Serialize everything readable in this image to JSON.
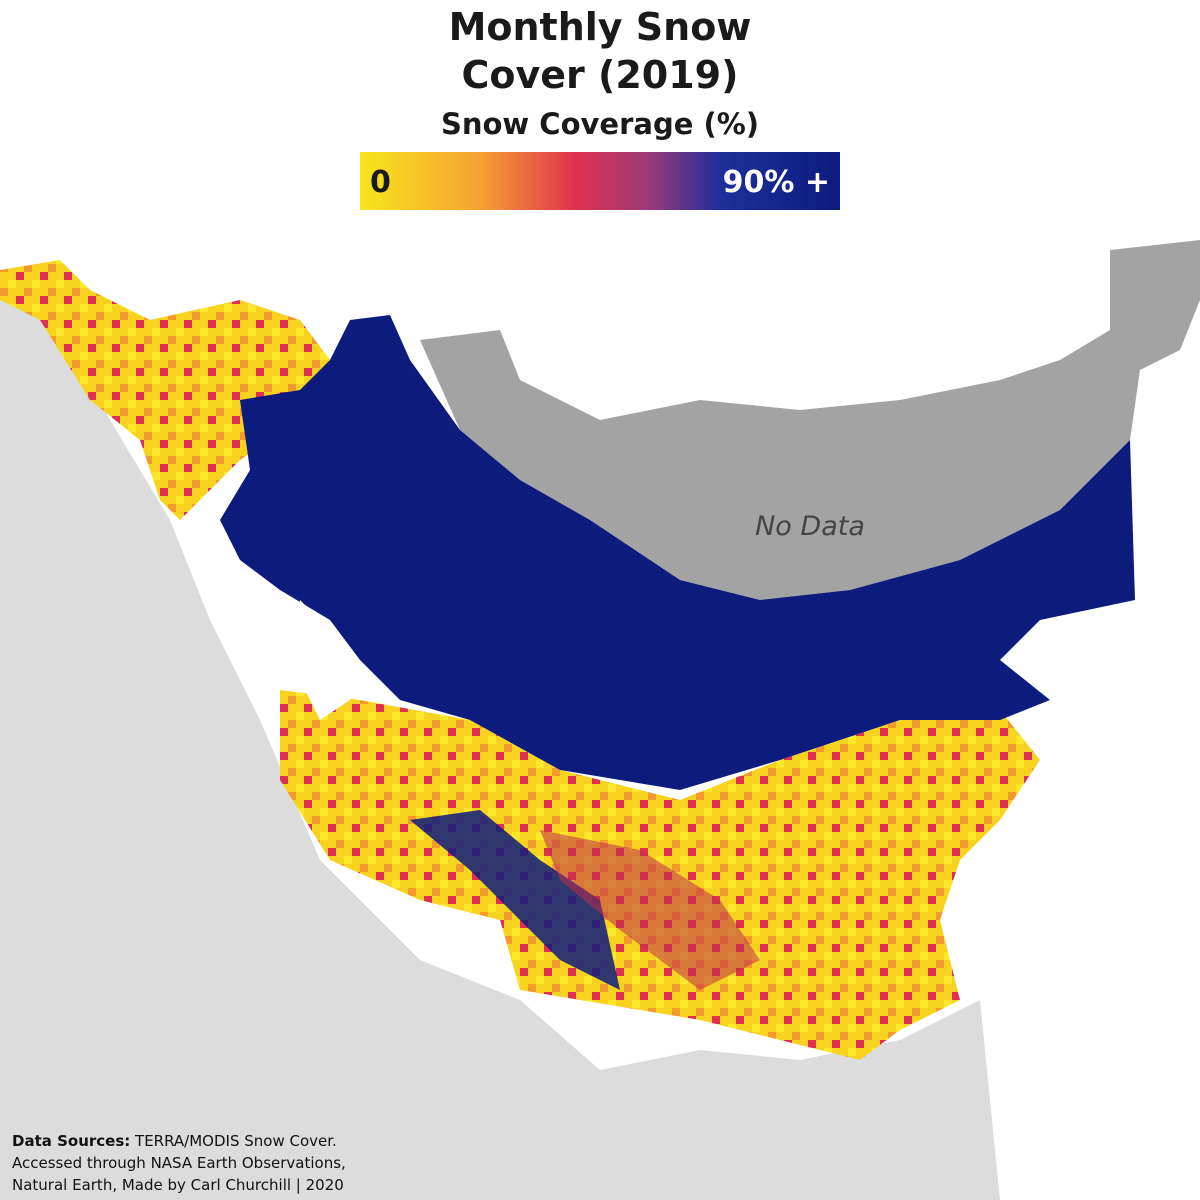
{
  "header": {
    "title_lines": [
      "Monthly Snow",
      "Cover (2019)"
    ],
    "subtitle": "Snow Coverage (%)"
  },
  "legend": {
    "min_label": "0",
    "max_label": "90% +"
  },
  "map": {
    "no_data_label": "No Data"
  },
  "credits": {
    "label": "Data Sources:",
    "lines": [
      "TERRA/MODIS Snow Cover.",
      "Accessed through NASA Earth Observations,",
      "Natural Earth, Made by Carl Churchill | 2020"
    ]
  }
}
